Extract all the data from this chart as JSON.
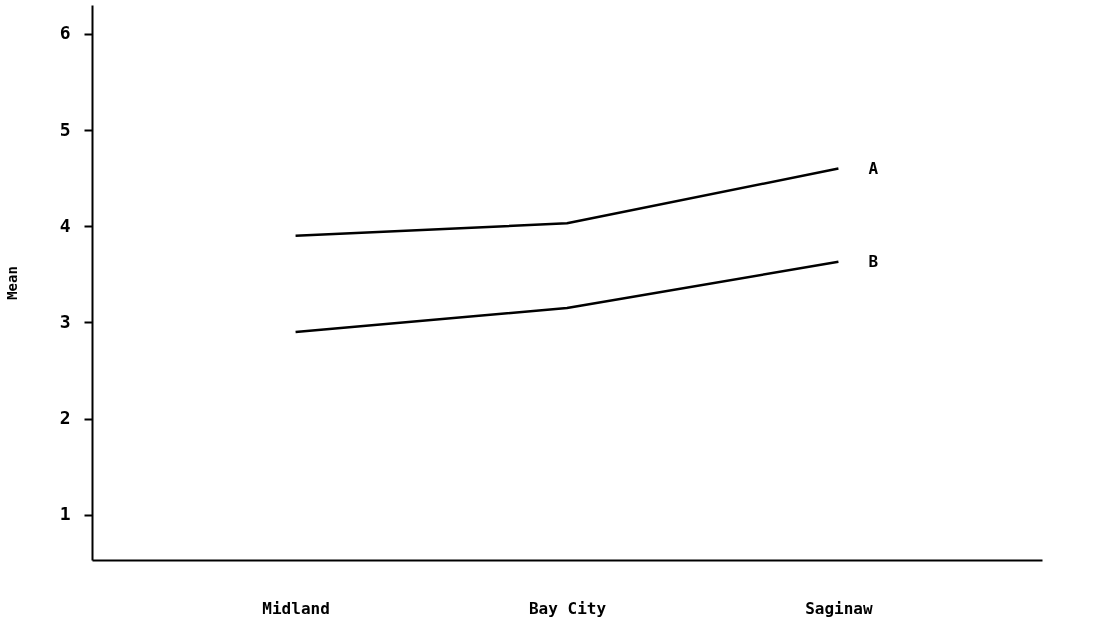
{
  "chart_data": {
    "type": "line",
    "ylabel": "Mean",
    "categories": [
      "Midland",
      "Bay City",
      "Saginaw"
    ],
    "series": [
      {
        "name": "A",
        "color": "#000000",
        "values": [
          3.9,
          4.03,
          4.6
        ]
      },
      {
        "name": "B",
        "color": "#000000",
        "values": [
          2.9,
          3.15,
          3.63
        ]
      }
    ],
    "ylim": [
      0.53,
      6.3
    ],
    "yticks": [
      1,
      2,
      3,
      4,
      5,
      6
    ],
    "grid": false,
    "legend": false,
    "marker": "none",
    "line_style": "solid"
  }
}
